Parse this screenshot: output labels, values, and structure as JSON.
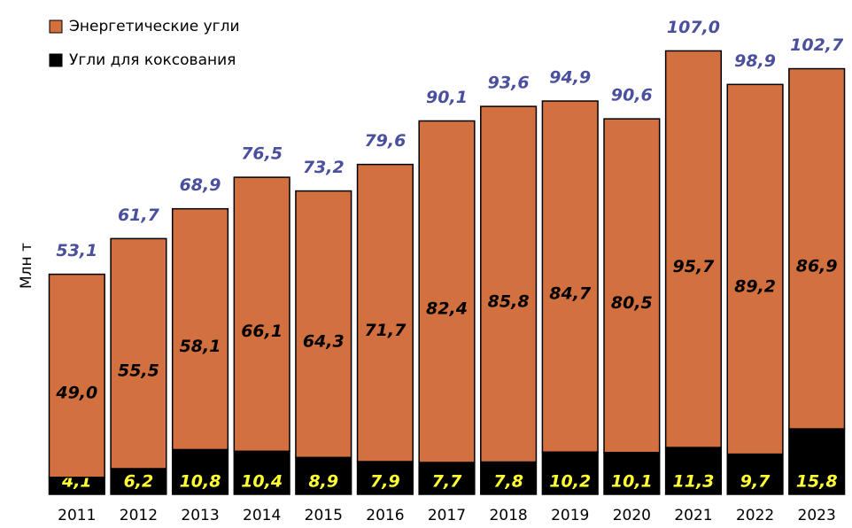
{
  "chart_data": {
    "type": "bar",
    "stacked": true,
    "y_label": "Млн т",
    "categories": [
      "2011",
      "2012",
      "2013",
      "2014",
      "2015",
      "2016",
      "2017",
      "2018",
      "2019",
      "2020",
      "2021",
      "2022",
      "2023"
    ],
    "series": [
      {
        "name": "Угли для коксования",
        "color": "#000000",
        "values": [
          4.1,
          6.2,
          10.8,
          10.4,
          8.9,
          7.9,
          7.7,
          7.8,
          10.2,
          10.1,
          11.3,
          9.7,
          15.8
        ],
        "value_labels": [
          "4,1",
          "6,2",
          "10,8",
          "10,4",
          "8,9",
          "7,9",
          "7,7",
          "7,8",
          "10,2",
          "10,1",
          "11,3",
          "9,7",
          "15,8"
        ],
        "label_color": "#ffff33"
      },
      {
        "name": "Энергетические угли",
        "color": "#d3703f",
        "values": [
          49.0,
          55.5,
          58.1,
          66.1,
          64.3,
          71.7,
          82.4,
          85.8,
          84.7,
          80.5,
          95.7,
          89.2,
          86.9
        ],
        "value_labels": [
          "49,0",
          "55,5",
          "58,1",
          "66,1",
          "64,3",
          "71,7",
          "82,4",
          "85,8",
          "84,7",
          "80,5",
          "95,7",
          "89,2",
          "86,9"
        ],
        "label_color": "#000000"
      }
    ],
    "totals": {
      "values": [
        53.1,
        61.7,
        68.9,
        76.5,
        73.2,
        79.6,
        90.1,
        93.6,
        94.9,
        90.6,
        107.0,
        98.9,
        102.7
      ],
      "value_labels": [
        "53,1",
        "61,7",
        "68,9",
        "76,5",
        "73,2",
        "79,6",
        "90,1",
        "93,6",
        "94,9",
        "90,6",
        "107,0",
        "98,9",
        "102,7"
      ],
      "color": "#4a4f9e"
    },
    "ylim": [
      0,
      115
    ],
    "legend": "top-left"
  }
}
